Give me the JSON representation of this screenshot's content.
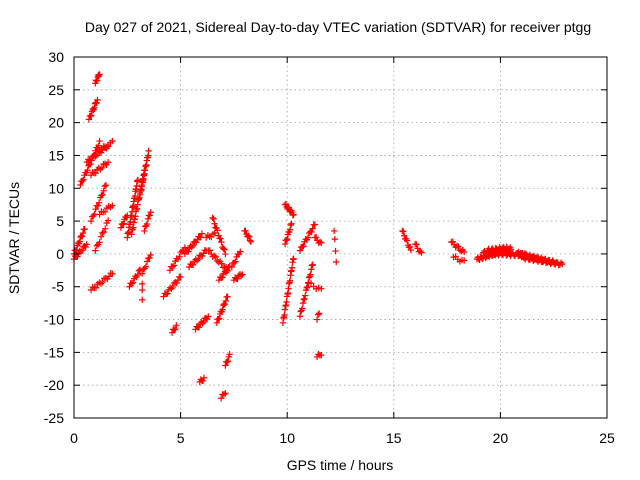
{
  "chart_data": {
    "type": "scatter",
    "title": "Day 027 of 2021, Sidereal Day-to-day VTEC variation (SDTVAR) for receiver ptgg",
    "xlabel": "GPS time / hours",
    "ylabel": "SDTVAR / TECUs",
    "xlim": [
      0,
      25
    ],
    "ylim": [
      -25,
      30
    ],
    "xticks": [
      "0",
      "5",
      "10",
      "15",
      "20",
      "25"
    ],
    "yticks": [
      "-25",
      "-20",
      "-15",
      "-10",
      "-5",
      "0",
      "5",
      "10",
      "15",
      "20",
      "25",
      "30"
    ],
    "grid": true,
    "marker": "+",
    "color": "#ff0000",
    "segments": [
      {
        "x0": 0.0,
        "x1": 0.5,
        "y0": 0.0,
        "y1": 3.8,
        "n": 14
      },
      {
        "x0": 0.0,
        "x1": 0.6,
        "y0": -0.8,
        "y1": 1.5,
        "n": 12
      },
      {
        "x0": 0.3,
        "x1": 1.2,
        "y0": 10.5,
        "y1": 17.0,
        "n": 20
      },
      {
        "x0": 0.6,
        "x1": 1.6,
        "y0": 14.0,
        "y1": 16.5,
        "n": 16
      },
      {
        "x0": 0.8,
        "x1": 1.6,
        "y0": 12.0,
        "y1": 14.0,
        "n": 12
      },
      {
        "x0": 0.8,
        "x1": 1.5,
        "y0": 5.0,
        "y1": 10.5,
        "n": 14
      },
      {
        "x0": 0.7,
        "x1": 1.1,
        "y0": 20.5,
        "y1": 23.5,
        "n": 12
      },
      {
        "x0": 1.0,
        "x1": 1.2,
        "y0": 26.0,
        "y1": 27.5,
        "n": 8
      },
      {
        "x0": 1.0,
        "x1": 1.6,
        "y0": 0.5,
        "y1": 5.0,
        "n": 10
      },
      {
        "x0": 1.2,
        "x1": 1.8,
        "y0": 6.0,
        "y1": 7.5,
        "n": 8
      },
      {
        "x0": 0.8,
        "x1": 1.8,
        "y0": -5.5,
        "y1": -3.0,
        "n": 14
      },
      {
        "x0": 1.3,
        "x1": 1.8,
        "y0": 16.0,
        "y1": 17.0,
        "n": 6
      },
      {
        "x0": 2.2,
        "x1": 2.5,
        "y0": 4.0,
        "y1": 6.0,
        "n": 8
      },
      {
        "x0": 2.5,
        "x1": 3.0,
        "y0": 2.5,
        "y1": 11.5,
        "n": 26
      },
      {
        "x0": 2.7,
        "x1": 3.3,
        "y0": 3.0,
        "y1": 12.5,
        "n": 24
      },
      {
        "x0": 3.1,
        "x1": 3.5,
        "y0": 9.0,
        "y1": 15.5,
        "n": 20
      },
      {
        "x0": 2.6,
        "x1": 3.1,
        "y0": -5.0,
        "y1": -2.5,
        "n": 10
      },
      {
        "x0": 3.3,
        "x1": 3.6,
        "y0": 3.5,
        "y1": 6.5,
        "n": 8
      },
      {
        "x0": 3.2,
        "x1": 3.6,
        "y0": -3.0,
        "y1": 0.0,
        "n": 8
      },
      {
        "x0": 3.2,
        "x1": 3.2,
        "y0": -7.0,
        "y1": -4.5,
        "n": 3
      },
      {
        "x0": 4.2,
        "x1": 5.0,
        "y0": -6.5,
        "y1": -3.5,
        "n": 14
      },
      {
        "x0": 4.5,
        "x1": 5.2,
        "y0": -2.5,
        "y1": 1.0,
        "n": 12
      },
      {
        "x0": 4.6,
        "x1": 4.8,
        "y0": -12.0,
        "y1": -11.0,
        "n": 5
      },
      {
        "x0": 5.2,
        "x1": 6.0,
        "y0": 0.0,
        "y1": 3.0,
        "n": 16
      },
      {
        "x0": 5.4,
        "x1": 6.2,
        "y0": -2.0,
        "y1": 0.5,
        "n": 14
      },
      {
        "x0": 5.7,
        "x1": 6.3,
        "y0": -11.5,
        "y1": -9.5,
        "n": 12
      },
      {
        "x0": 5.9,
        "x1": 6.1,
        "y0": -19.5,
        "y1": -19.0,
        "n": 5
      },
      {
        "x0": 6.2,
        "x1": 6.6,
        "y0": 2.5,
        "y1": 3.0,
        "n": 6
      },
      {
        "x0": 6.3,
        "x1": 7.2,
        "y0": 0.5,
        "y1": -2.5,
        "n": 14
      },
      {
        "x0": 6.5,
        "x1": 7.1,
        "y0": 5.5,
        "y1": 0.0,
        "n": 14
      },
      {
        "x0": 6.7,
        "x1": 7.2,
        "y0": -10.5,
        "y1": -6.5,
        "n": 14
      },
      {
        "x0": 6.8,
        "x1": 7.3,
        "y0": -4.0,
        "y1": -2.0,
        "n": 10
      },
      {
        "x0": 6.9,
        "x1": 7.1,
        "y0": -22.0,
        "y1": -21.0,
        "n": 4
      },
      {
        "x0": 7.1,
        "x1": 7.3,
        "y0": -17.0,
        "y1": -15.5,
        "n": 6
      },
      {
        "x0": 7.4,
        "x1": 7.8,
        "y0": -2.0,
        "y1": 0.5,
        "n": 8
      },
      {
        "x0": 7.5,
        "x1": 7.9,
        "y0": -4.0,
        "y1": -3.0,
        "n": 8
      },
      {
        "x0": 8.0,
        "x1": 8.3,
        "y0": 3.5,
        "y1": 2.0,
        "n": 8
      },
      {
        "x0": 9.9,
        "x1": 10.3,
        "y0": 7.5,
        "y1": 6.0,
        "n": 12
      },
      {
        "x0": 9.8,
        "x1": 10.3,
        "y0": -10.5,
        "y1": -0.5,
        "n": 22
      },
      {
        "x0": 9.9,
        "x1": 10.2,
        "y0": 1.5,
        "y1": 4.5,
        "n": 10
      },
      {
        "x0": 10.6,
        "x1": 11.2,
        "y0": -9.5,
        "y1": -1.5,
        "n": 18
      },
      {
        "x0": 10.6,
        "x1": 11.3,
        "y0": 0.5,
        "y1": 4.5,
        "n": 14
      },
      {
        "x0": 11.0,
        "x1": 11.6,
        "y0": -4.5,
        "y1": -5.5,
        "n": 6
      },
      {
        "x0": 11.3,
        "x1": 11.6,
        "y0": 2.5,
        "y1": 1.5,
        "n": 6
      },
      {
        "x0": 11.4,
        "x1": 11.6,
        "y0": -15.7,
        "y1": -15.2,
        "n": 4
      },
      {
        "x0": 11.4,
        "x1": 11.5,
        "y0": -10.0,
        "y1": -9.0,
        "n": 3
      },
      {
        "x0": 12.2,
        "x1": 12.3,
        "y0": 3.5,
        "y1": -1.0,
        "n": 4
      },
      {
        "x0": 15.4,
        "x1": 15.8,
        "y0": 3.5,
        "y1": 0.5,
        "n": 10
      },
      {
        "x0": 16.0,
        "x1": 16.3,
        "y0": 1.5,
        "y1": 0.0,
        "n": 6
      },
      {
        "x0": 17.7,
        "x1": 18.3,
        "y0": 1.8,
        "y1": 0.2,
        "n": 10
      },
      {
        "x0": 17.8,
        "x1": 18.3,
        "y0": -0.5,
        "y1": -1.2,
        "n": 6
      },
      {
        "x0": 18.9,
        "x1": 20.5,
        "y0": -0.8,
        "y1": 0.8,
        "n": 40
      },
      {
        "x0": 19.2,
        "x1": 21.2,
        "y0": 0.2,
        "y1": -0.2,
        "n": 40
      },
      {
        "x0": 19.4,
        "x1": 20.3,
        "y0": 0.5,
        "y1": 0.9,
        "n": 20
      },
      {
        "x0": 20.8,
        "x1": 22.5,
        "y0": 0.1,
        "y1": -1.3,
        "n": 36
      },
      {
        "x0": 21.0,
        "x1": 22.9,
        "y0": -0.5,
        "y1": -1.6,
        "n": 36
      }
    ]
  }
}
